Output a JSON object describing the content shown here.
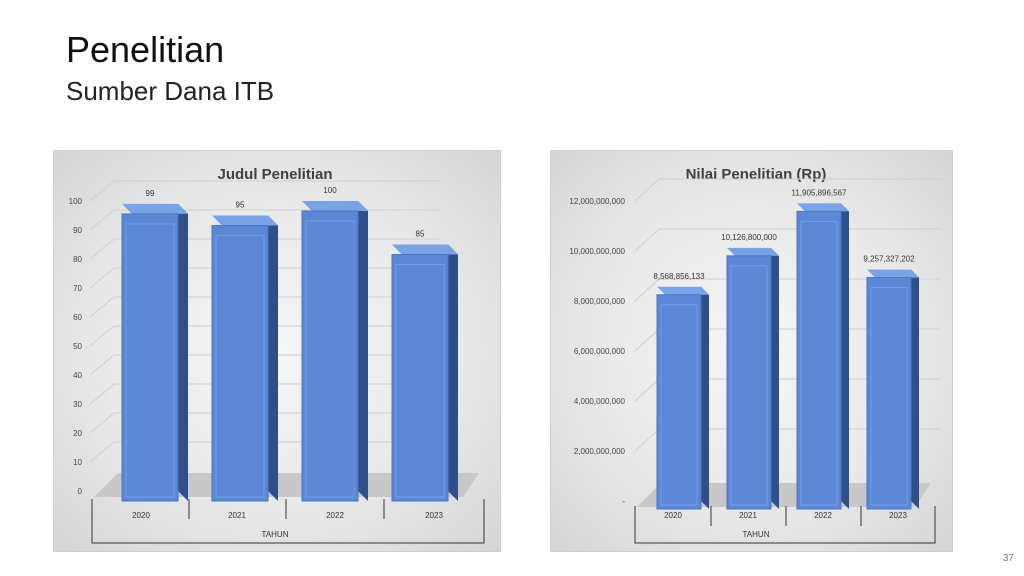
{
  "slide": {
    "title": "Penelitian",
    "subtitle": "Sumber Dana ITB",
    "page_number": "37"
  },
  "colors": {
    "bar_front": "#5b87d6",
    "bar_side": "#2f4f8a",
    "bar_top": "#7aa2e6",
    "floor": "#c8c8c8"
  },
  "chart_data": [
    {
      "type": "bar",
      "title": "Judul Penelitian",
      "xlabel": "TAHUN",
      "ylabel": "",
      "categories": [
        "2020",
        "2021",
        "2022",
        "2023"
      ],
      "values": [
        99,
        95,
        100,
        85
      ],
      "data_labels": [
        "99",
        "95",
        "100",
        "85"
      ],
      "ylim": [
        0,
        100
      ],
      "yticks": [
        0,
        10,
        20,
        30,
        40,
        50,
        60,
        70,
        80,
        90,
        100
      ],
      "ytick_labels": [
        "0",
        "10",
        "20",
        "30",
        "40",
        "50",
        "60",
        "70",
        "80",
        "90",
        "100"
      ],
      "grid": true,
      "style": "3d-column"
    },
    {
      "type": "bar",
      "title": "Nilai Penelitian (Rp)",
      "xlabel": "TAHUN",
      "ylabel": "",
      "categories": [
        "2020",
        "2021",
        "2022",
        "2023"
      ],
      "values": [
        8568856133,
        10126800000,
        11905896567,
        9257327202
      ],
      "data_labels": [
        "8,568,856,133",
        "10,126,800,000",
        "11,905,896,567",
        "9,257,327,202"
      ],
      "ylim": [
        0,
        12000000000
      ],
      "yticks": [
        0,
        2000000000,
        4000000000,
        6000000000,
        8000000000,
        10000000000,
        12000000000
      ],
      "ytick_labels": [
        "-",
        "2,000,000,000",
        "4,000,000,000",
        "6,000,000,000",
        "8,000,000,000",
        "10,000,000,000",
        "12,000,000,000"
      ],
      "grid": true,
      "style": "3d-column"
    }
  ]
}
